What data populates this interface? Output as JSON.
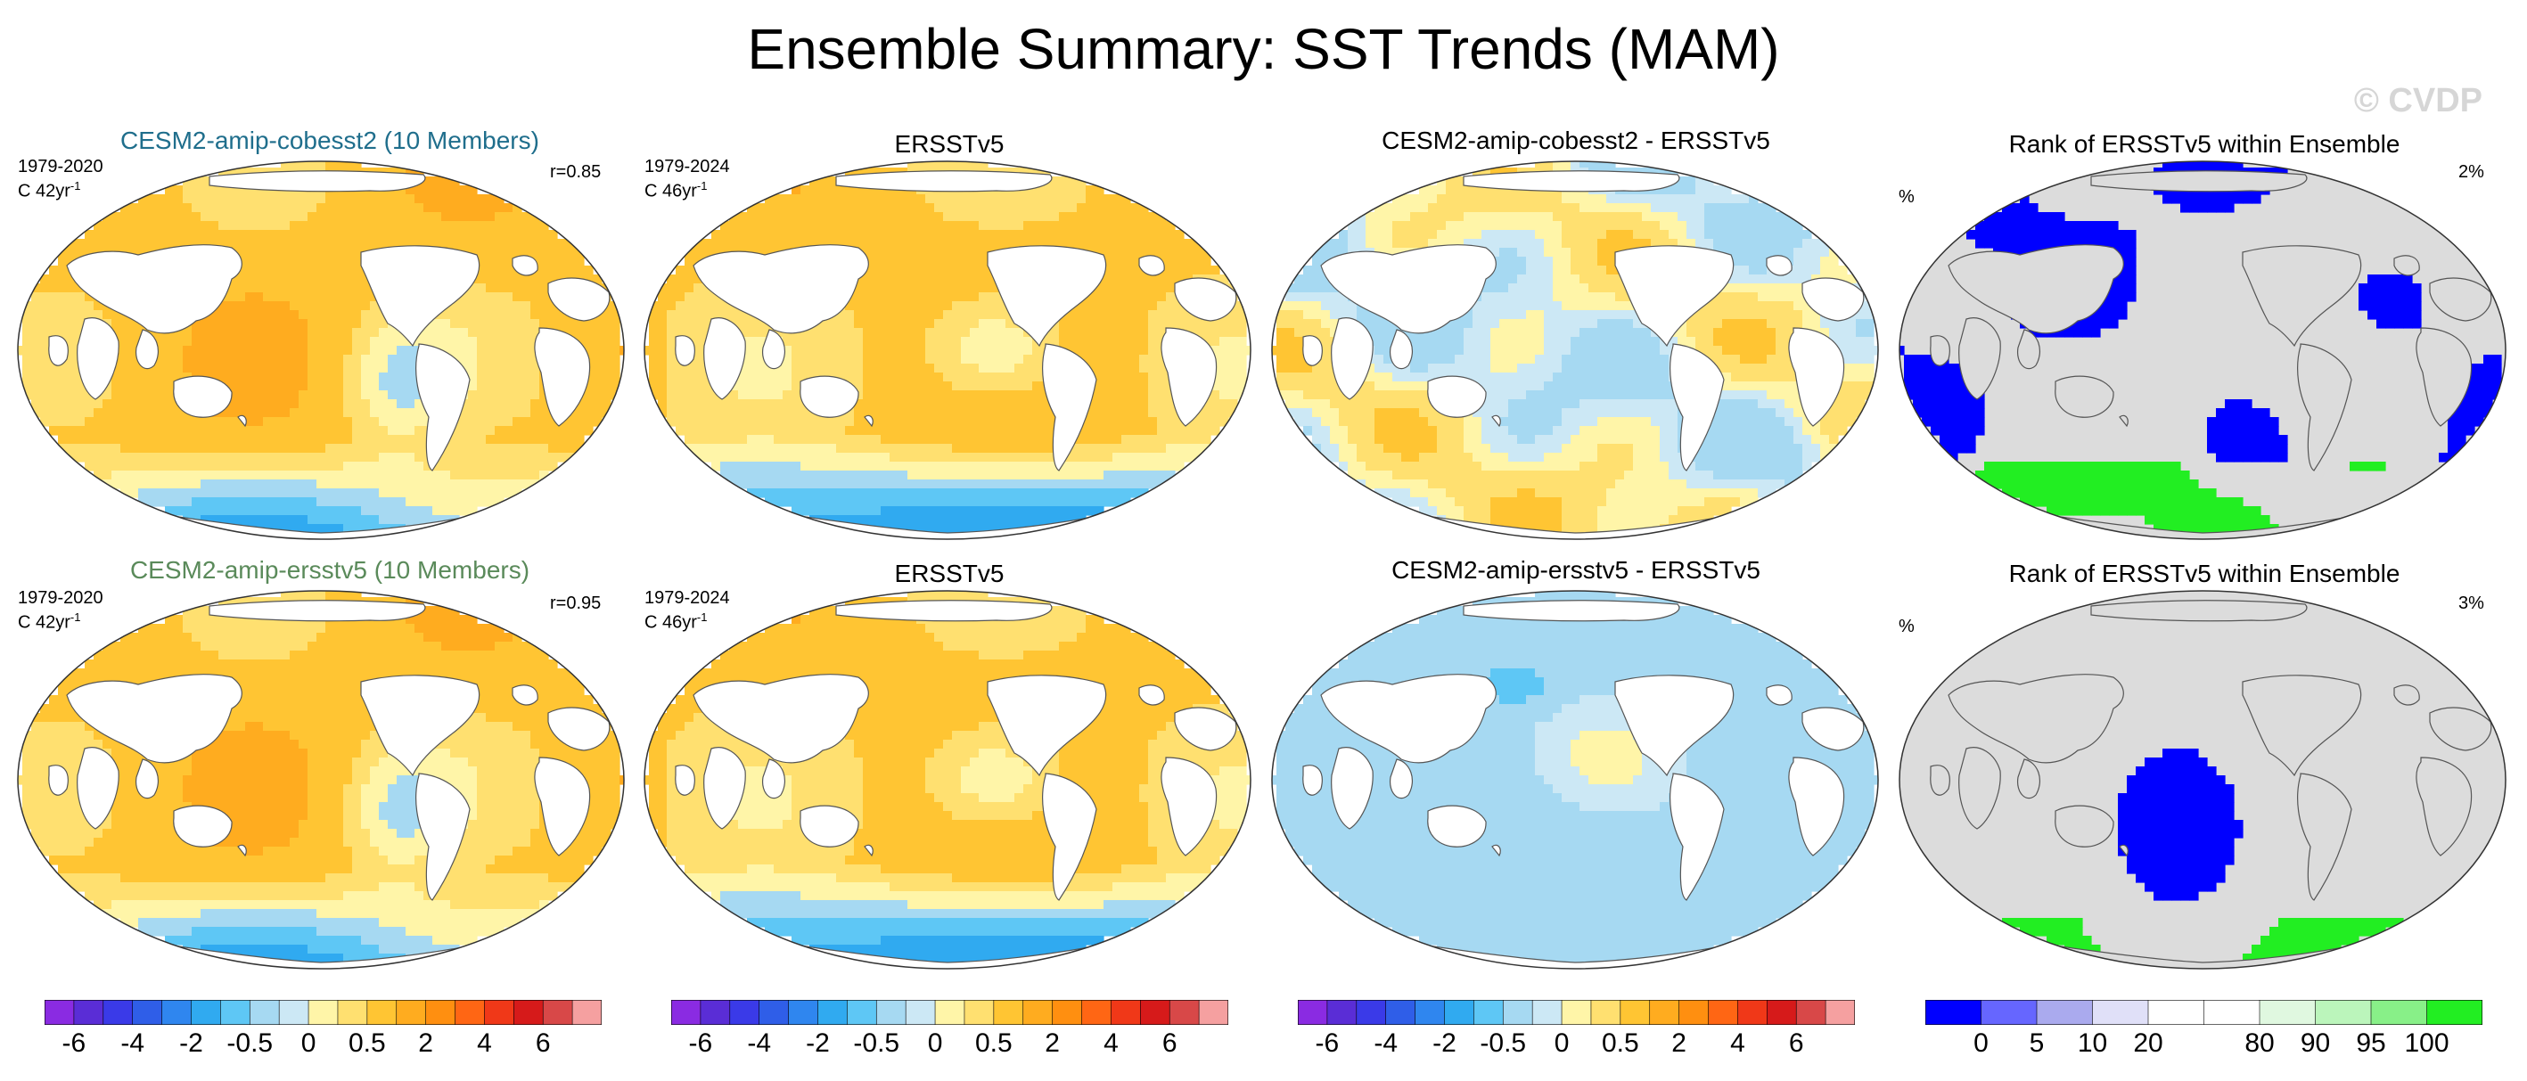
{
  "title": "Ensemble Summary: SST Trends (MAM)",
  "watermark": "© CVDP",
  "colors": {
    "model1_title": "#1f6e8c",
    "model2_title": "#5a8a5a",
    "trend_palette": [
      "#8a2be2",
      "#5a2dd6",
      "#3a3ae8",
      "#2f5ee8",
      "#2f86ef",
      "#30aaf0",
      "#5ec7f5",
      "#a6d9f2",
      "#cce8f5",
      "#fff5a8",
      "#ffe070",
      "#ffc533",
      "#ffac1f",
      "#ff8f10",
      "#ff6614",
      "#f03818",
      "#d61a1a",
      "#d84848",
      "#f5a0a0"
    ],
    "rank_palette": [
      "#0000ff",
      "#6666ff",
      "#aaaaee",
      "#e0e0f8",
      "#ffffff",
      "#ffffff",
      "#e0f8e0",
      "#bbf5bb",
      "#88f088",
      "#22ee22"
    ],
    "land": "#ffffff",
    "land_rank": "#dcdcdc"
  },
  "rows": [
    {
      "panels": [
        {
          "title": "CESM2-amip-cobesst2 (10 Members)",
          "years": "1979-2020",
          "trend_label": "C 42yr",
          "sup": "-1",
          "corner_right": "r=0.85",
          "kind": "model"
        },
        {
          "title": "ERSSTv5",
          "years": "1979-2024",
          "trend_label": "C 46yr",
          "sup": "-1",
          "corner_right": "",
          "kind": "obs"
        },
        {
          "title": "CESM2-amip-cobesst2 - ERSSTv5",
          "years": "",
          "trend_label": "",
          "sup": "",
          "corner_right": "",
          "kind": "diff1"
        },
        {
          "title": "Rank of ERSSTv5 within Ensemble",
          "years": "",
          "trend_label": "%",
          "sup": "",
          "corner_right": "2%",
          "kind": "rank1"
        }
      ]
    },
    {
      "panels": [
        {
          "title": "CESM2-amip-ersstv5 (10 Members)",
          "years": "1979-2020",
          "trend_label": "C 42yr",
          "sup": "-1",
          "corner_right": "r=0.95",
          "kind": "model"
        },
        {
          "title": "ERSSTv5",
          "years": "1979-2024",
          "trend_label": "C 46yr",
          "sup": "-1",
          "corner_right": "",
          "kind": "obs"
        },
        {
          "title": "CESM2-amip-ersstv5 - ERSSTv5",
          "years": "",
          "trend_label": "",
          "sup": "",
          "corner_right": "",
          "kind": "diff2"
        },
        {
          "title": "Rank of ERSSTv5 within Ensemble",
          "years": "",
          "trend_label": "%",
          "sup": "",
          "corner_right": "3%",
          "kind": "rank2"
        }
      ]
    }
  ],
  "colorbars": [
    {
      "labels": [
        "-6",
        "-4",
        "-2",
        "-0.5",
        "0",
        "0.5",
        "2",
        "4",
        "6"
      ]
    },
    {
      "labels": [
        "-6",
        "-4",
        "-2",
        "-0.5",
        "0",
        "0.5",
        "2",
        "4",
        "6"
      ]
    },
    {
      "labels": [
        "-6",
        "-4",
        "-2",
        "-0.5",
        "0",
        "0.5",
        "2",
        "4",
        "6"
      ]
    },
    {
      "labels": [
        "0",
        "5",
        "10",
        "20",
        "80",
        "90",
        "95",
        "100"
      ]
    }
  ],
  "chart_data": [
    {
      "type": "heatmap",
      "title": "CESM2-amip-cobesst2 (10 Members)",
      "period": "1979-2020",
      "units": "C 42yr-1",
      "pattern_correlation": 0.85,
      "colorbar_levels": [
        -6,
        -4,
        -2,
        -0.5,
        0,
        0.5,
        2,
        4,
        6
      ]
    },
    {
      "type": "heatmap",
      "title": "ERSSTv5",
      "period": "1979-2024",
      "units": "C 46yr-1",
      "colorbar_levels": [
        -6,
        -4,
        -2,
        -0.5,
        0,
        0.5,
        2,
        4,
        6
      ]
    },
    {
      "type": "heatmap",
      "title": "CESM2-amip-cobesst2 - ERSSTv5",
      "colorbar_levels": [
        -6,
        -4,
        -2,
        -0.5,
        0,
        0.5,
        2,
        4,
        6
      ]
    },
    {
      "type": "heatmap",
      "title": "Rank of ERSSTv5 within Ensemble",
      "units": "%",
      "area_outside": "2%",
      "colorbar_levels": [
        0,
        5,
        10,
        20,
        80,
        90,
        95,
        100
      ]
    },
    {
      "type": "heatmap",
      "title": "CESM2-amip-ersstv5 (10 Members)",
      "period": "1979-2020",
      "units": "C 42yr-1",
      "pattern_correlation": 0.95,
      "colorbar_levels": [
        -6,
        -4,
        -2,
        -0.5,
        0,
        0.5,
        2,
        4,
        6
      ]
    },
    {
      "type": "heatmap",
      "title": "ERSSTv5",
      "period": "1979-2024",
      "units": "C 46yr-1",
      "colorbar_levels": [
        -6,
        -4,
        -2,
        -0.5,
        0,
        0.5,
        2,
        4,
        6
      ]
    },
    {
      "type": "heatmap",
      "title": "CESM2-amip-ersstv5 - ERSSTv5",
      "colorbar_levels": [
        -6,
        -4,
        -2,
        -0.5,
        0,
        0.5,
        2,
        4,
        6
      ]
    },
    {
      "type": "heatmap",
      "title": "Rank of ERSSTv5 within Ensemble",
      "units": "%",
      "area_outside": "3%",
      "colorbar_levels": [
        0,
        5,
        10,
        20,
        80,
        90,
        95,
        100
      ]
    }
  ]
}
